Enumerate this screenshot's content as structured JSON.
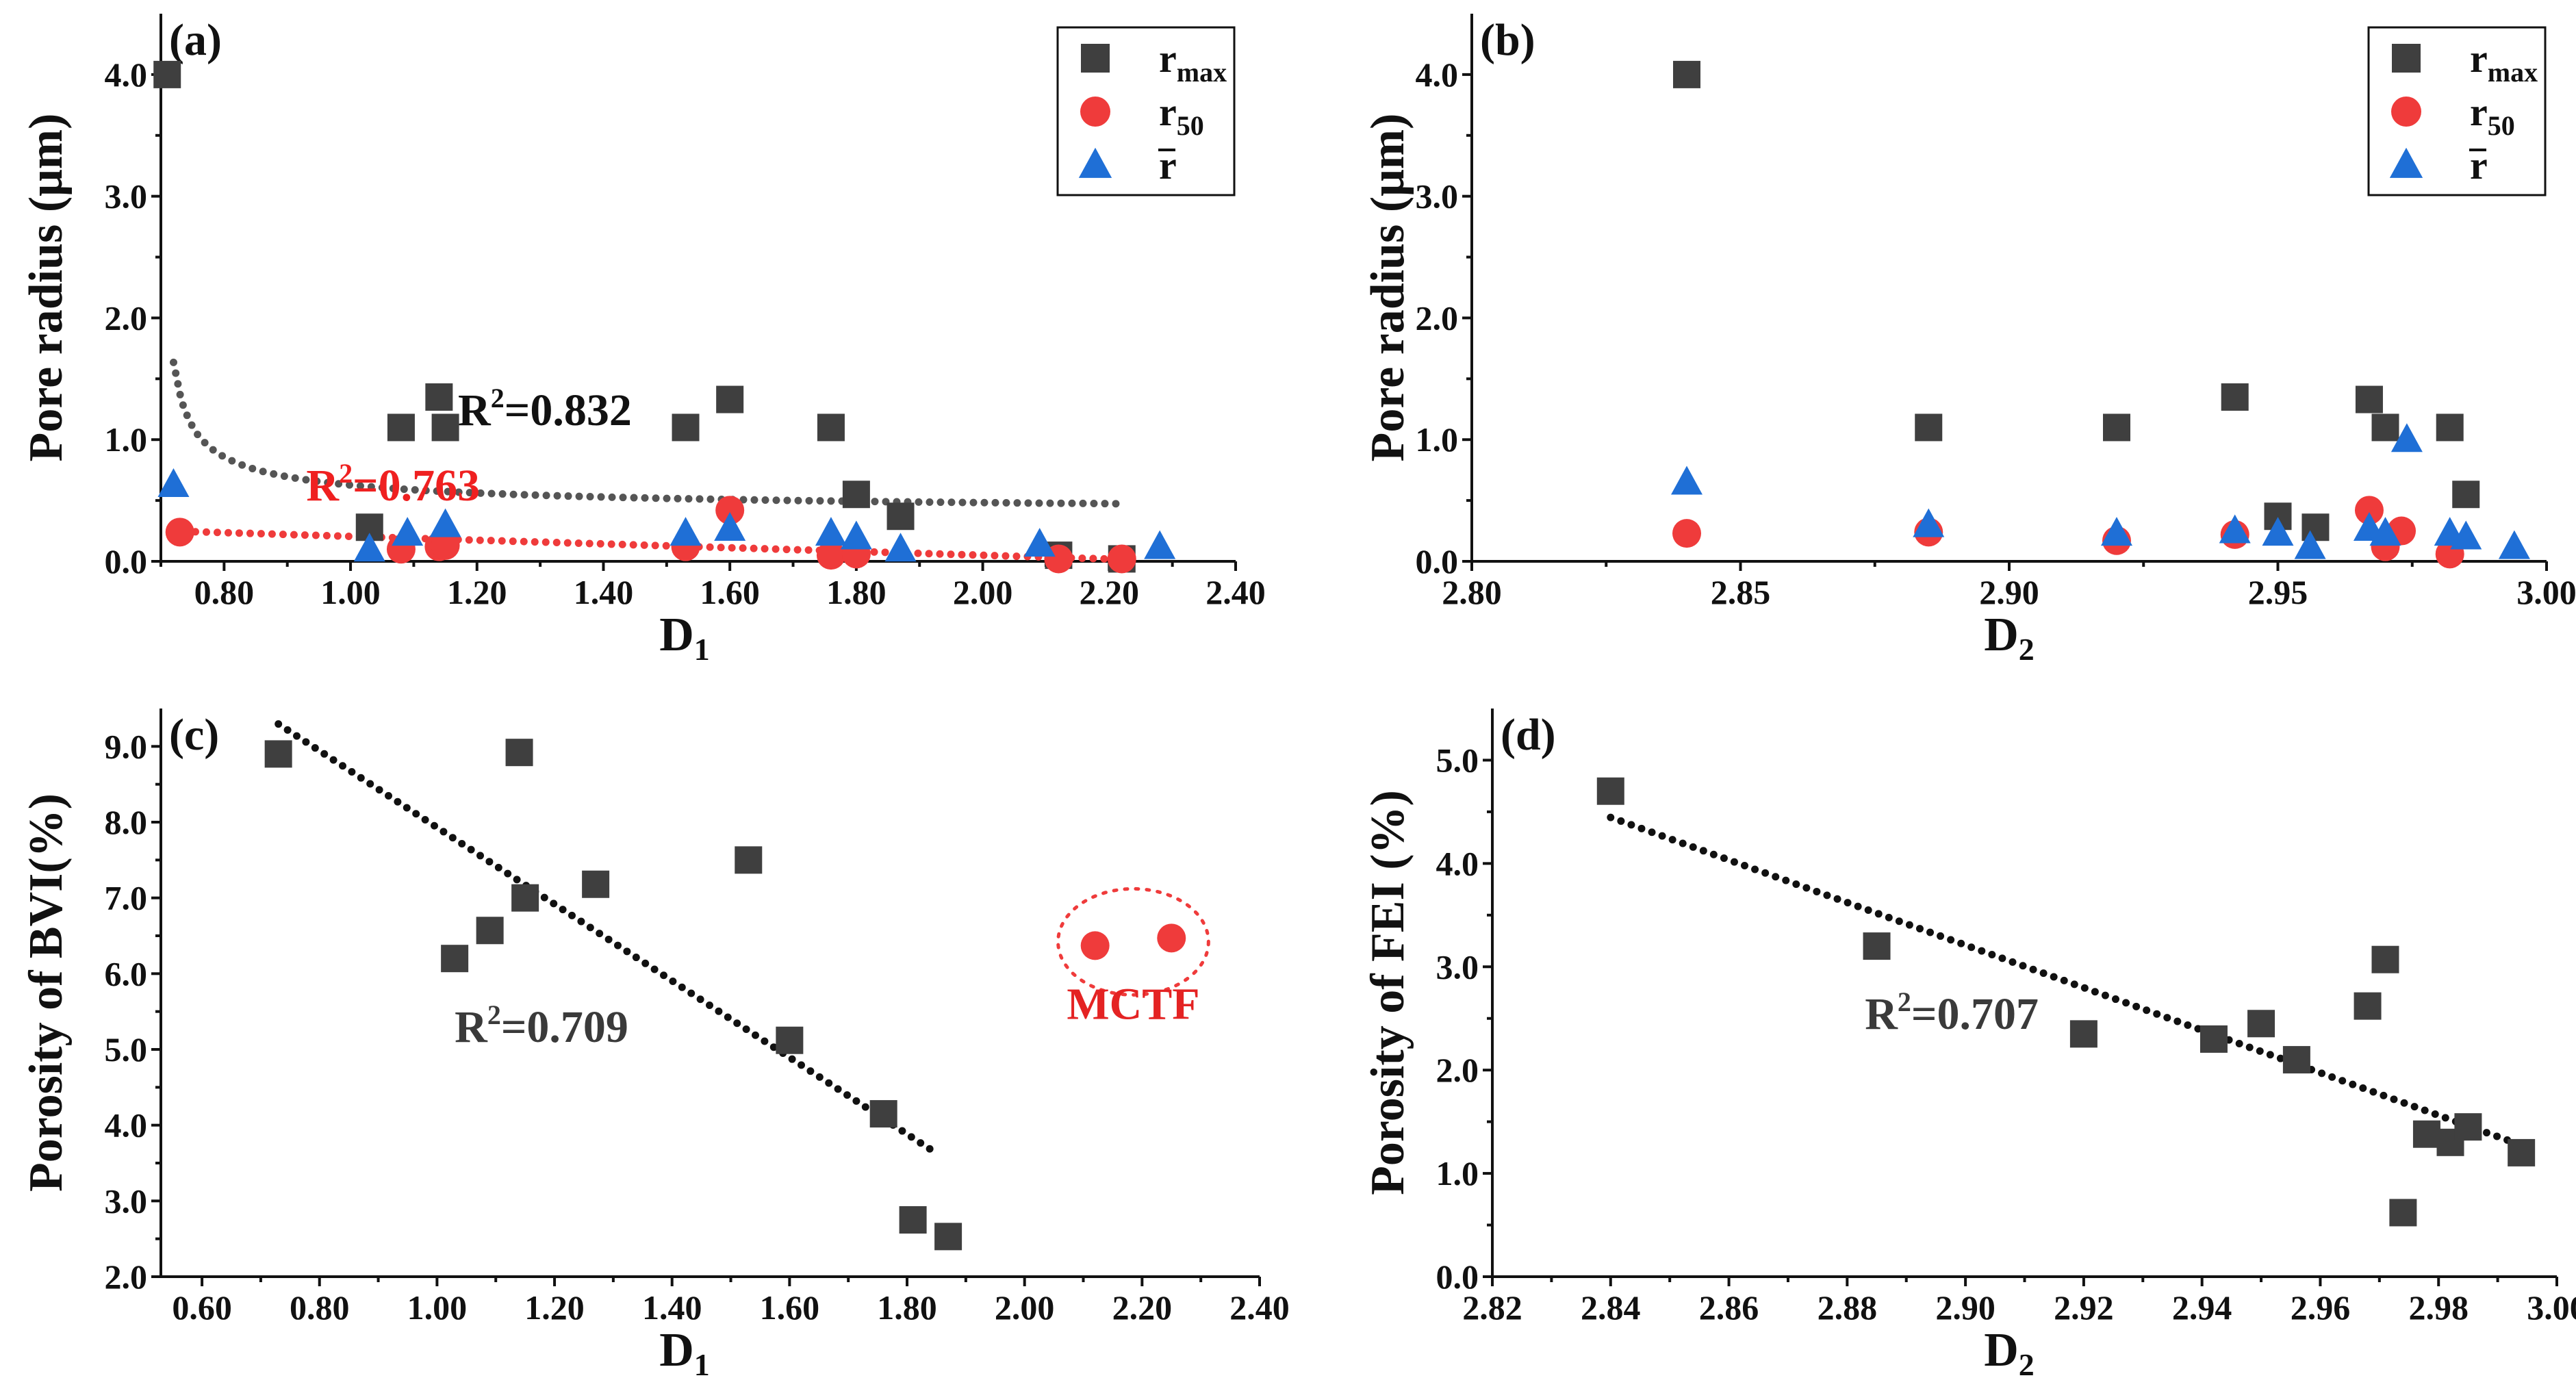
{
  "chart_data": [
    {
      "id": "a",
      "type": "scatter",
      "label": "(a)",
      "xlabel": "D",
      "xlabel_sub": "1",
      "ylabel": "Pore radius (μm)",
      "xlim": [
        0.7,
        2.4
      ],
      "ylim": [
        0,
        4.5
      ],
      "xticks": [
        "0.80",
        "1.00",
        "1.20",
        "1.40",
        "1.60",
        "1.80",
        "2.00",
        "2.20",
        "2.40"
      ],
      "yticks": [
        "0.0",
        "1.0",
        "2.0",
        "3.0",
        "4.0"
      ],
      "legend": {
        "position": "top-right",
        "entries": [
          {
            "name": "r",
            "sub": "max",
            "marker": "square"
          },
          {
            "name": "r",
            "sub": "50",
            "marker": "circle"
          },
          {
            "name": "r",
            "overline": true,
            "marker": "triangle"
          }
        ]
      },
      "series": [
        {
          "name": "rmax",
          "marker": "square",
          "color": "#3f3f3f",
          "x": [
            0.71,
            1.03,
            1.08,
            1.14,
            1.15,
            1.53,
            1.6,
            1.76,
            1.8,
            1.87,
            2.12,
            2.22
          ],
          "y": [
            4.0,
            0.28,
            1.1,
            1.35,
            1.1,
            1.1,
            1.33,
            1.1,
            0.55,
            0.37,
            0.05,
            0.02
          ]
        },
        {
          "name": "r50",
          "marker": "circle",
          "color": "#ef3b3b",
          "x": [
            0.73,
            1.08,
            1.14,
            1.15,
            1.53,
            1.6,
            1.76,
            1.8,
            2.12,
            2.22
          ],
          "y": [
            0.24,
            0.1,
            0.12,
            0.13,
            0.12,
            0.42,
            0.05,
            0.06,
            0.02,
            0.02
          ]
        },
        {
          "name": "rmean",
          "marker": "triangle",
          "color": "#1f6fd6",
          "x": [
            0.72,
            1.03,
            1.09,
            1.15,
            1.53,
            1.6,
            1.76,
            1.8,
            1.87,
            2.09,
            2.28
          ],
          "y": [
            0.63,
            0.1,
            0.23,
            0.3,
            0.23,
            0.27,
            0.23,
            0.2,
            0.1,
            0.14,
            0.12
          ]
        }
      ],
      "fits": [
        {
          "name": "rmax fit",
          "style": "dotted",
          "color": "#555555",
          "kind": "power",
          "x_range": [
            0.72,
            2.22
          ],
          "a": 1.1,
          "b": -1.1,
          "c": 0,
          "offset_x": 0.7
        },
        {
          "name": "r50 fit",
          "style": "dotted",
          "color": "#ef3b3b",
          "kind": "linear",
          "x_range": [
            0.72,
            2.22
          ],
          "slope": -0.155,
          "intercept": 0.36
        }
      ],
      "annotations": [
        {
          "text": "R",
          "sup": "2",
          "rest": "=0.832",
          "color": "#111111",
          "x": 1.17,
          "y": 1.12
        },
        {
          "text": "R",
          "sup": "2",
          "rest": "=0.763",
          "color": "#ef2020",
          "x": 0.93,
          "y": 0.5
        }
      ]
    },
    {
      "id": "b",
      "type": "scatter",
      "label": "(b)",
      "xlabel": "D",
      "xlabel_sub": "2",
      "ylabel": "Pore radius (μm)",
      "xlim": [
        2.8,
        3.0
      ],
      "ylim": [
        0,
        4.5
      ],
      "xticks": [
        "2.80",
        "2.85",
        "2.90",
        "2.95",
        "3.00"
      ],
      "yticks": [
        "0.0",
        "1.0",
        "2.0",
        "3.0",
        "4.0"
      ],
      "legend": {
        "position": "top-right",
        "entries": [
          {
            "name": "r",
            "sub": "max",
            "marker": "square"
          },
          {
            "name": "r",
            "sub": "50",
            "marker": "circle"
          },
          {
            "name": "r",
            "overline": true,
            "marker": "triangle"
          }
        ]
      },
      "series": [
        {
          "name": "rmax",
          "marker": "square",
          "color": "#3f3f3f",
          "x": [
            2.84,
            2.885,
            2.92,
            2.942,
            2.95,
            2.957,
            2.967,
            2.97,
            2.982,
            2.985
          ],
          "y": [
            4.0,
            1.1,
            1.1,
            1.35,
            0.37,
            0.28,
            1.33,
            1.1,
            1.1,
            0.55
          ]
        },
        {
          "name": "r50",
          "marker": "circle",
          "color": "#ef3b3b",
          "x": [
            2.84,
            2.885,
            2.92,
            2.942,
            2.967,
            2.97,
            2.973,
            2.982
          ],
          "y": [
            0.23,
            0.24,
            0.17,
            0.22,
            0.42,
            0.12,
            0.25,
            0.06
          ]
        },
        {
          "name": "rmean",
          "marker": "triangle",
          "color": "#1f6fd6",
          "x": [
            2.84,
            2.885,
            2.92,
            2.942,
            2.95,
            2.956,
            2.967,
            2.97,
            2.974,
            2.982,
            2.985,
            2.994
          ],
          "y": [
            0.65,
            0.3,
            0.23,
            0.25,
            0.23,
            0.12,
            0.27,
            0.23,
            1.0,
            0.23,
            0.2,
            0.12
          ]
        }
      ],
      "fits": [],
      "annotations": []
    },
    {
      "id": "c",
      "type": "scatter",
      "label": "(c)",
      "xlabel": "D",
      "xlabel_sub": "1",
      "ylabel": "Porosity of BVI(%)",
      "xlim": [
        0.53,
        2.4
      ],
      "ylim": [
        2.0,
        9.5
      ],
      "xticks": [
        "0.60",
        "0.80",
        "1.00",
        "1.20",
        "1.40",
        "1.60",
        "1.80",
        "2.00",
        "2.20",
        "2.40"
      ],
      "yticks": [
        "2.0",
        "3.0",
        "4.0",
        "5.0",
        "6.0",
        "7.0",
        "8.0",
        "9.0"
      ],
      "series": [
        {
          "name": "BVI",
          "marker": "square",
          "color": "#3f3f3f",
          "x": [
            0.73,
            1.03,
            1.09,
            1.14,
            1.15,
            1.27,
            1.53,
            1.6,
            1.76,
            1.81,
            1.87
          ],
          "y": [
            8.9,
            6.2,
            6.57,
            8.92,
            7.0,
            7.18,
            7.5,
            5.12,
            4.15,
            2.75,
            2.53
          ]
        },
        {
          "name": "MCTF",
          "marker": "circle",
          "color": "#ef3b3b",
          "x": [
            2.12,
            2.25
          ],
          "y": [
            6.37,
            6.47
          ]
        }
      ],
      "fits": [
        {
          "name": "BVI fit",
          "style": "dotted",
          "color": "#111111",
          "kind": "linear",
          "x_range": [
            0.73,
            1.84
          ],
          "slope": -5.06,
          "intercept": 12.99
        }
      ],
      "annotations": [
        {
          "text": "R",
          "sup": "2",
          "rest": "=0.709",
          "color": "#3a3a3a",
          "x": 1.03,
          "y": 5.1
        },
        {
          "text": "MCTF",
          "color": "#e42323",
          "x": 2.185,
          "y": 5.4,
          "small": true
        }
      ],
      "highlight_ellipse": {
        "cx": 2.185,
        "cy": 6.42,
        "rx": 0.128,
        "ry": 0.7,
        "color": "#ef3b3b"
      }
    },
    {
      "id": "d",
      "type": "scatter",
      "label": "(d)",
      "xlabel": "D",
      "xlabel_sub": "2",
      "ylabel": "Porosity of FEI (%)",
      "xlim": [
        2.82,
        3.0
      ],
      "ylim": [
        0.0,
        5.5
      ],
      "xticks": [
        "2.82",
        "2.84",
        "2.86",
        "2.88",
        "2.90",
        "2.92",
        "2.94",
        "2.96",
        "2.98",
        "3.00"
      ],
      "yticks": [
        "0.0",
        "1.0",
        "2.0",
        "3.0",
        "4.0",
        "5.0"
      ],
      "series": [
        {
          "name": "FEI",
          "marker": "square",
          "color": "#3f3f3f",
          "x": [
            2.84,
            2.885,
            2.92,
            2.942,
            2.95,
            2.956,
            2.968,
            2.971,
            2.974,
            2.978,
            2.982,
            2.985,
            2.994
          ],
          "y": [
            4.7,
            3.2,
            2.35,
            2.3,
            2.45,
            2.1,
            2.62,
            3.07,
            0.62,
            1.38,
            1.3,
            1.45,
            1.2
          ]
        }
      ],
      "fits": [
        {
          "name": "FEI fit",
          "style": "dotted",
          "color": "#111111",
          "kind": "linear",
          "x_range": [
            2.84,
            2.994
          ],
          "slope": -20.6,
          "intercept": 62.95
        }
      ],
      "annotations": [
        {
          "text": "R",
          "sup": "2",
          "rest": "=0.707",
          "color": "#3a3a3a",
          "x": 2.883,
          "y": 2.4
        }
      ]
    }
  ]
}
